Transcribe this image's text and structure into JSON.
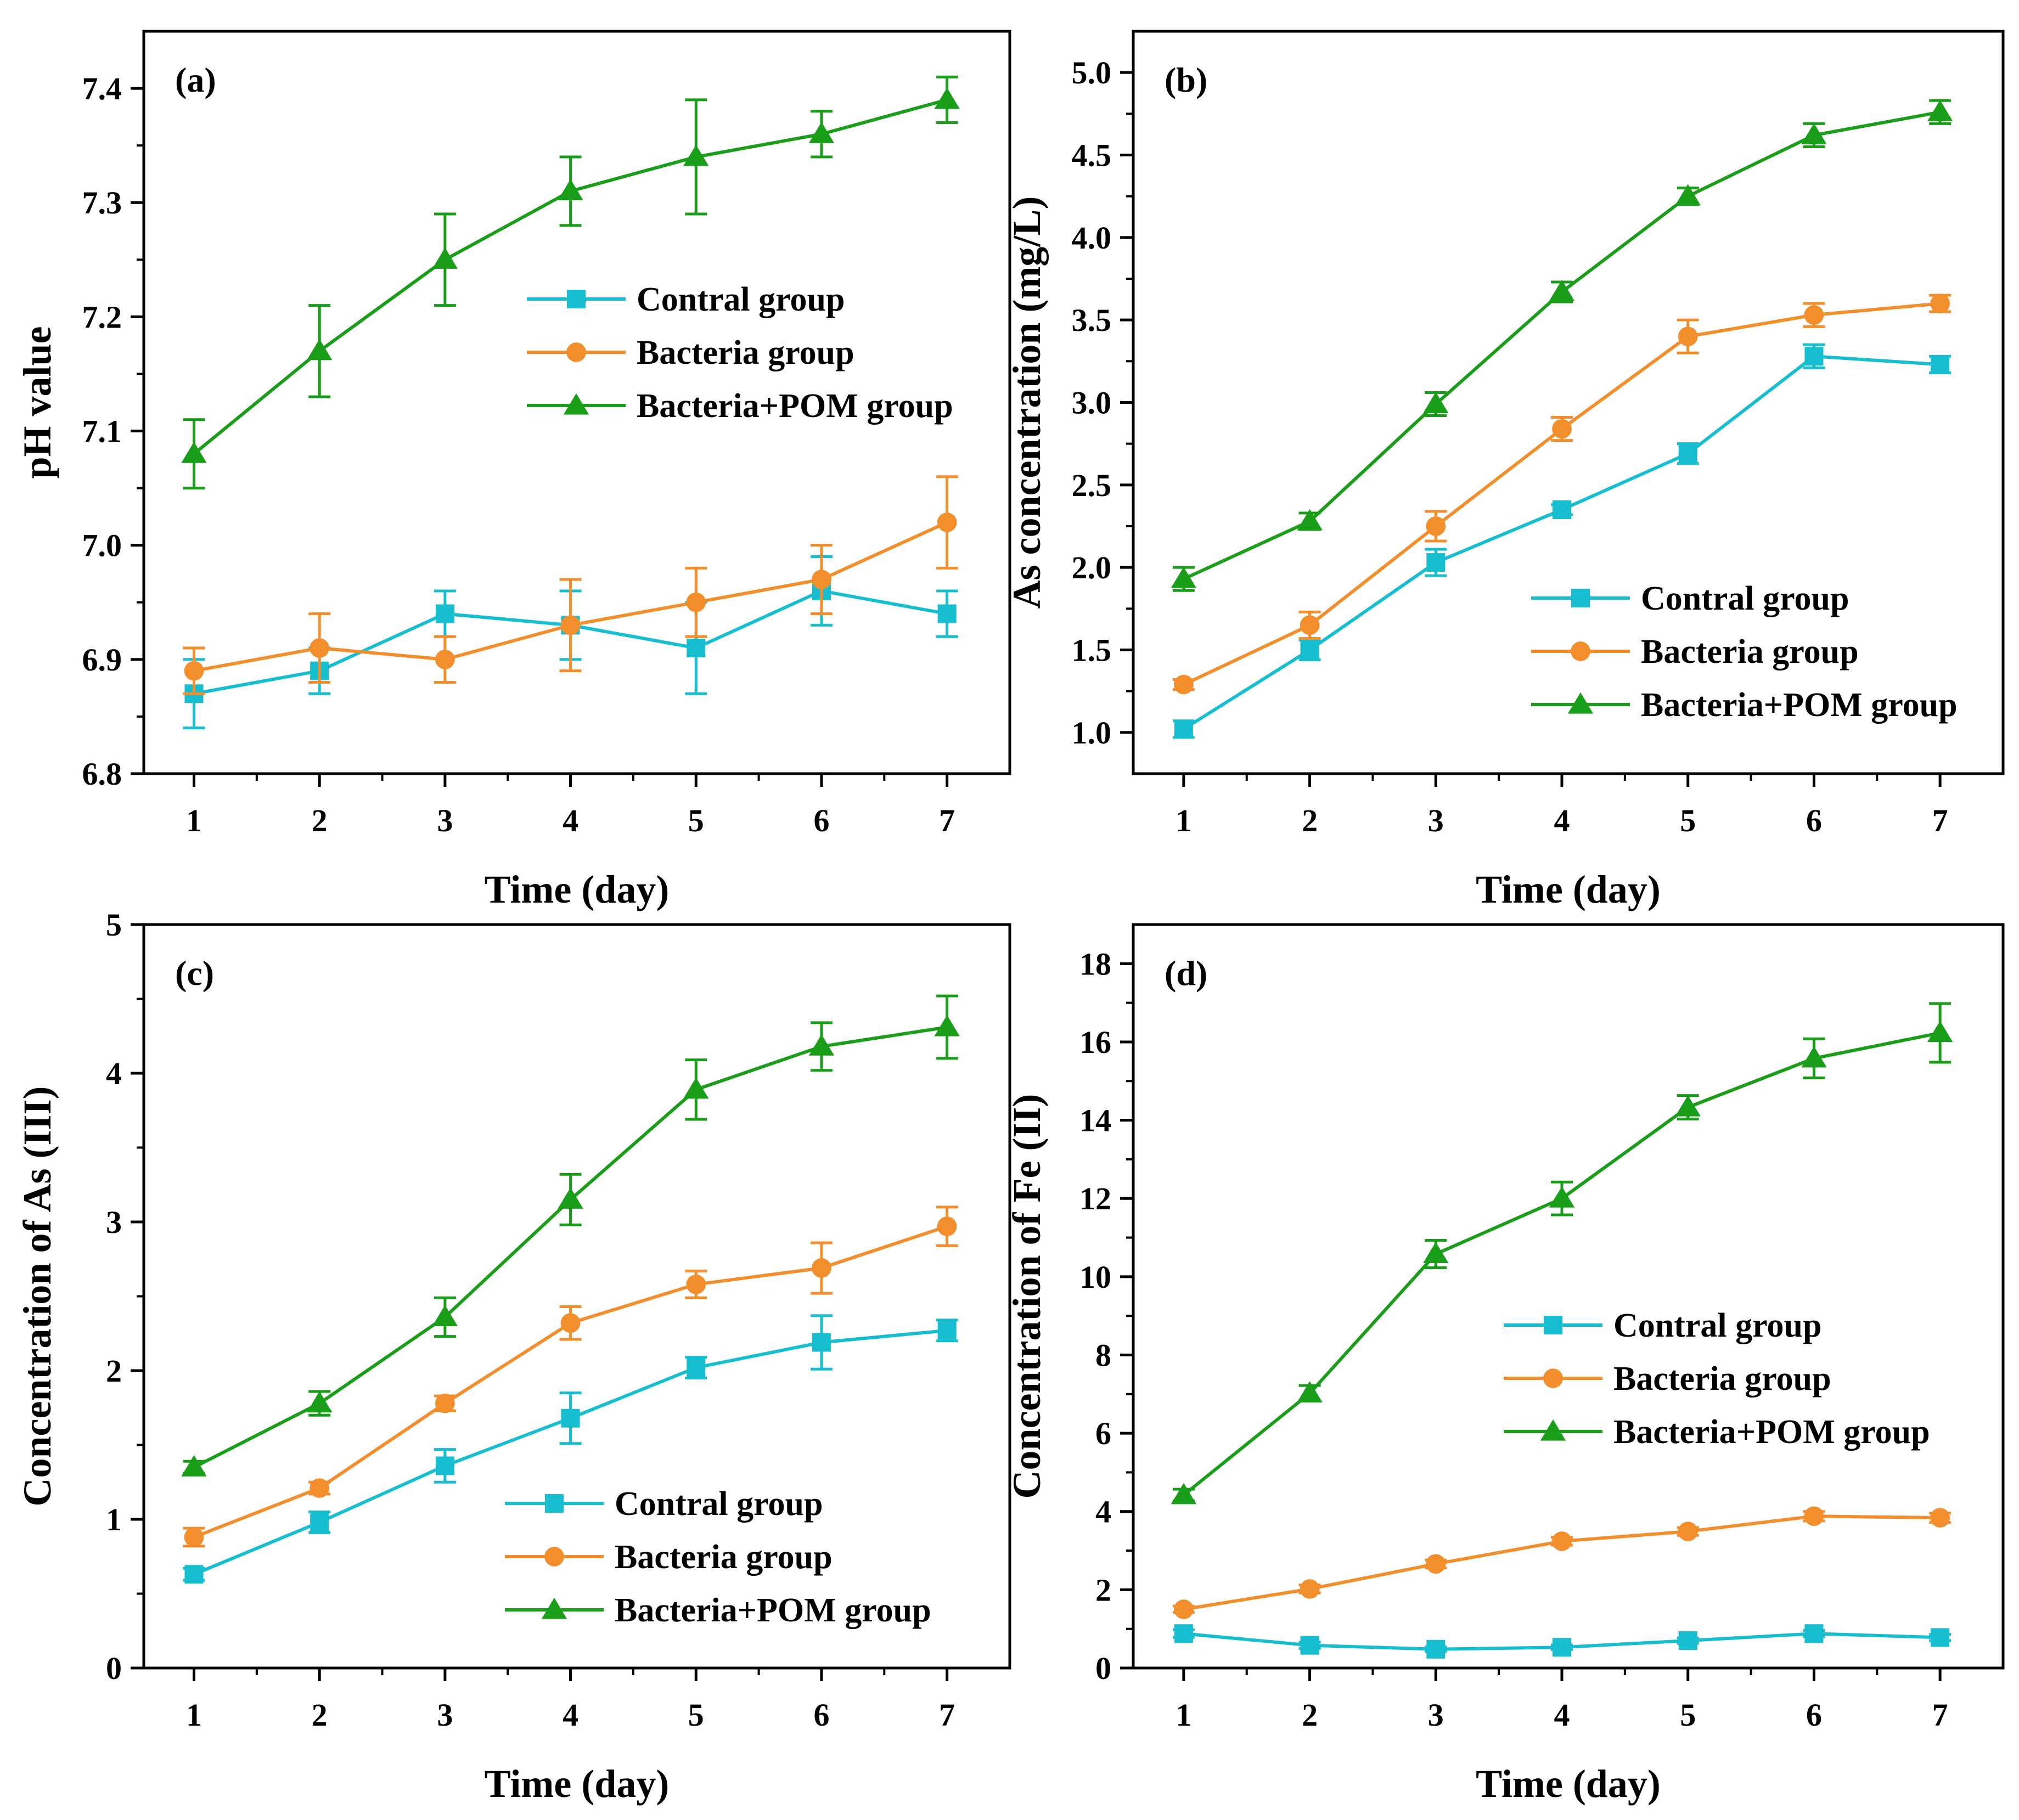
{
  "colors": {
    "control": "#17BECF",
    "bacteria": "#F28E2B",
    "pom": "#1A9E1A",
    "axis": "#000000"
  },
  "chart_data": [
    {
      "type": "line",
      "panel": "(a)",
      "xlabel": "Time (day)",
      "ylabel": "pH value",
      "x": [
        1,
        2,
        3,
        4,
        5,
        6,
        7
      ],
      "xlim": [
        0.6,
        7.5
      ],
      "ylim": [
        6.8,
        7.45
      ],
      "yticks": [
        6.8,
        6.9,
        7.0,
        7.1,
        7.2,
        7.3,
        7.4
      ],
      "ytick_labels": [
        "6.8",
        "6.9",
        "7.0",
        "7.1",
        "7.2",
        "7.3",
        "7.4"
      ],
      "legend_position": "center-right",
      "series": [
        {
          "key": "control",
          "name": "Contral group",
          "marker": "square",
          "values": [
            6.87,
            6.89,
            6.94,
            6.93,
            6.91,
            6.96,
            6.94
          ],
          "errors": [
            0.03,
            0.02,
            0.02,
            0.03,
            0.04,
            0.03,
            0.02
          ]
        },
        {
          "key": "bacteria",
          "name": "Bacteria group",
          "marker": "circle",
          "values": [
            6.89,
            6.91,
            6.9,
            6.93,
            6.95,
            6.97,
            7.02
          ],
          "errors": [
            0.02,
            0.03,
            0.02,
            0.04,
            0.03,
            0.03,
            0.04
          ]
        },
        {
          "key": "pom",
          "name": "Bacteria+POM group",
          "marker": "triangle",
          "values": [
            7.08,
            7.17,
            7.25,
            7.31,
            7.34,
            7.36,
            7.39
          ],
          "errors": [
            0.03,
            0.04,
            0.04,
            0.03,
            0.05,
            0.02,
            0.02
          ]
        }
      ]
    },
    {
      "type": "line",
      "panel": "(b)",
      "xlabel": "Time (day)",
      "ylabel": "As concentration (mg/L)",
      "x": [
        1,
        2,
        3,
        4,
        5,
        6,
        7
      ],
      "xlim": [
        0.6,
        7.5
      ],
      "ylim": [
        0.75,
        5.25
      ],
      "yticks": [
        1.0,
        1.5,
        2.0,
        2.5,
        3.0,
        3.5,
        4.0,
        4.5,
        5.0
      ],
      "ytick_labels": [
        "1.0",
        "1.5",
        "2.0",
        "2.5",
        "3.0",
        "3.5",
        "4.0",
        "4.5",
        "5.0"
      ],
      "legend_position": "lower-right",
      "series": [
        {
          "key": "control",
          "name": "Contral group",
          "marker": "square",
          "values": [
            1.02,
            1.5,
            2.03,
            2.35,
            2.69,
            3.28,
            3.23
          ],
          "errors": [
            0.05,
            0.06,
            0.08,
            0.03,
            0.06,
            0.07,
            0.05
          ]
        },
        {
          "key": "bacteria",
          "name": "Bacteria group",
          "marker": "circle",
          "values": [
            1.29,
            1.65,
            2.25,
            2.84,
            3.4,
            3.53,
            3.6
          ],
          "errors": [
            0.03,
            0.08,
            0.09,
            0.07,
            0.1,
            0.07,
            0.05
          ]
        },
        {
          "key": "pom",
          "name": "Bacteria+POM group",
          "marker": "triangle",
          "values": [
            1.93,
            2.28,
            2.99,
            3.67,
            4.25,
            4.62,
            4.76
          ],
          "errors": [
            0.07,
            0.05,
            0.07,
            0.06,
            0.05,
            0.07,
            0.07
          ]
        }
      ]
    },
    {
      "type": "line",
      "panel": "(c)",
      "xlabel": "Time (day)",
      "ylabel": "Concentration of As (III)",
      "x": [
        1,
        2,
        3,
        4,
        5,
        6,
        7
      ],
      "xlim": [
        0.6,
        7.5
      ],
      "ylim": [
        0,
        5
      ],
      "yticks": [
        0,
        1,
        2,
        3,
        4,
        5
      ],
      "ytick_labels": [
        "0",
        "1",
        "2",
        "3",
        "4",
        "5"
      ],
      "legend_position": "lower-right",
      "series": [
        {
          "key": "control",
          "name": "Contral group",
          "marker": "square",
          "values": [
            0.63,
            0.98,
            1.36,
            1.68,
            2.02,
            2.19,
            2.27
          ],
          "errors": [
            0.04,
            0.07,
            0.11,
            0.17,
            0.07,
            0.18,
            0.07
          ]
        },
        {
          "key": "bacteria",
          "name": "Bacteria group",
          "marker": "circle",
          "values": [
            0.88,
            1.21,
            1.78,
            2.32,
            2.58,
            2.69,
            2.97
          ],
          "errors": [
            0.06,
            0.04,
            0.05,
            0.11,
            0.09,
            0.17,
            0.13
          ]
        },
        {
          "key": "pom",
          "name": "Bacteria+POM group",
          "marker": "triangle",
          "values": [
            1.35,
            1.78,
            2.36,
            3.15,
            3.89,
            4.18,
            4.31
          ],
          "errors": [
            0.04,
            0.08,
            0.13,
            0.17,
            0.2,
            0.16,
            0.21
          ]
        }
      ]
    },
    {
      "type": "line",
      "panel": "(d)",
      "xlabel": "Time (day)",
      "ylabel": "Concentration of Fe (II)",
      "x": [
        1,
        2,
        3,
        4,
        5,
        6,
        7
      ],
      "xlim": [
        0.6,
        7.5
      ],
      "ylim": [
        0,
        19
      ],
      "yticks": [
        0,
        2,
        4,
        6,
        8,
        10,
        12,
        14,
        16,
        18
      ],
      "ytick_labels": [
        "0",
        "2",
        "4",
        "6",
        "8",
        "10",
        "12",
        "14",
        "16",
        "18"
      ],
      "legend_position": "center-right",
      "series": [
        {
          "key": "control",
          "name": "Contral group",
          "marker": "square",
          "values": [
            0.88,
            0.58,
            0.48,
            0.53,
            0.7,
            0.88,
            0.78
          ],
          "errors": [
            0.1,
            0.08,
            0.06,
            0.06,
            0.07,
            0.08,
            0.08
          ]
        },
        {
          "key": "bacteria",
          "name": "Bacteria group",
          "marker": "circle",
          "values": [
            1.5,
            2.02,
            2.66,
            3.24,
            3.49,
            3.88,
            3.84
          ],
          "errors": [
            0.08,
            0.1,
            0.1,
            0.1,
            0.1,
            0.12,
            0.12
          ]
        },
        {
          "key": "pom",
          "name": "Bacteria+POM group",
          "marker": "triangle",
          "values": [
            4.42,
            7.02,
            10.58,
            12.0,
            14.33,
            15.58,
            16.23
          ],
          "errors": [
            0.15,
            0.2,
            0.35,
            0.42,
            0.3,
            0.5,
            0.75
          ]
        }
      ]
    }
  ]
}
